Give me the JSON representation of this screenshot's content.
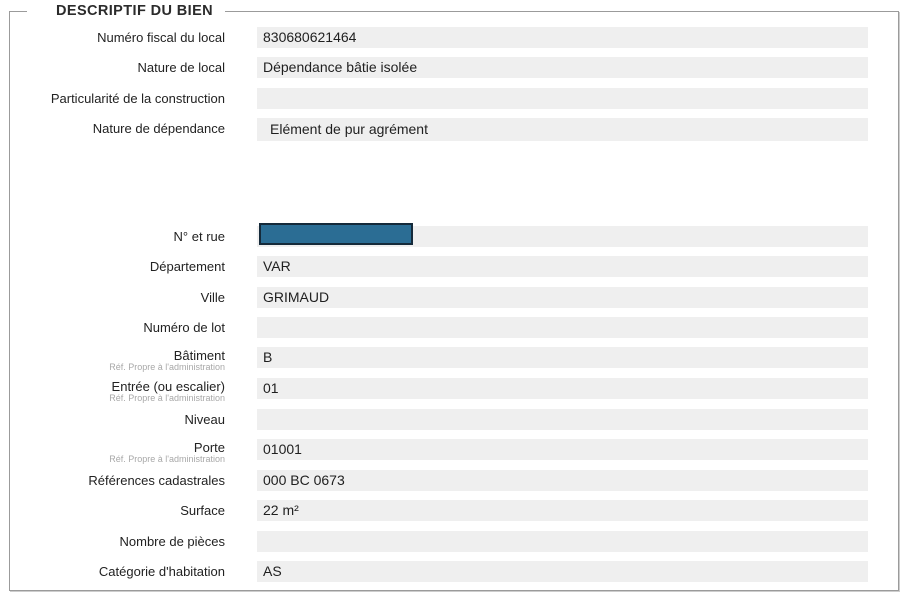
{
  "header": {
    "legend": "DESCRIPTIF DU BIEN"
  },
  "colors": {
    "frame_border": "#9b9b9b",
    "field_background": "#efefef",
    "label_text": "#222222",
    "value_text": "#1f1f1f",
    "sublabel_text": "#a8a8a8",
    "redaction_fill": "#2b6d94",
    "redaction_border": "#152a3a"
  },
  "fields": [
    {
      "label": "Numéro fiscal du local",
      "value": "830680621464"
    },
    {
      "label": "Nature de local",
      "value": "Dépendance bâtie isolée"
    },
    {
      "label": "Particularité de la construction",
      "value": ""
    },
    {
      "label": "Nature de dépendance",
      "value": "Elément de pur agrément"
    },
    {
      "label": "N° et rue",
      "value": ""
    },
    {
      "label": "Département",
      "value": "VAR"
    },
    {
      "label": "Ville",
      "value": "GRIMAUD"
    },
    {
      "label": "Numéro de lot",
      "value": ""
    },
    {
      "label": "Bâtiment",
      "sublabel": "Réf. Propre à l'administration",
      "value": "B"
    },
    {
      "label": "Entrée (ou escalier)",
      "sublabel": "Réf. Propre à l'administration",
      "value": "01"
    },
    {
      "label": "Niveau",
      "value": ""
    },
    {
      "label": "Porte",
      "sublabel": "Réf. Propre à l'administration",
      "value": "01001"
    },
    {
      "label": "Références cadastrales",
      "value": "000 BC 0673"
    },
    {
      "label": "Surface",
      "value": "22 m²"
    },
    {
      "label": "Nombre de pièces",
      "value": ""
    },
    {
      "label": "Catégorie d'habitation",
      "value": "AS"
    }
  ]
}
